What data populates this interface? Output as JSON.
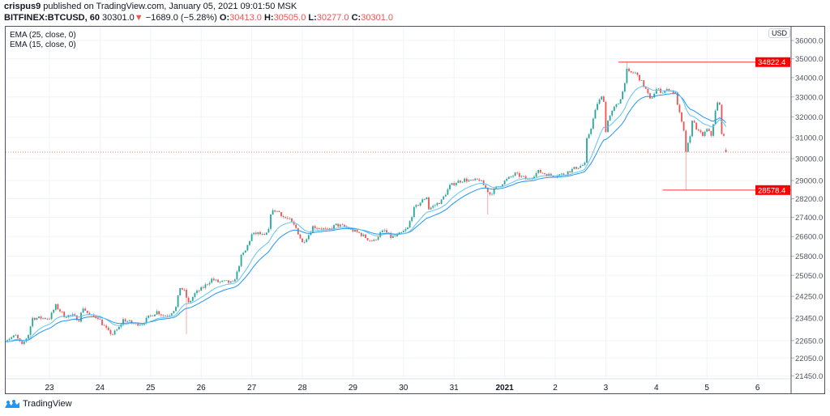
{
  "header": {
    "author": "crispus9",
    "published": " published on TradingView.com, January 05, 2021 09:01:50 MSK",
    "symbol": "BITFINEX:BTCUSD, 60",
    "last": "30301.0",
    "change": "−1689.0 (−5.28%)",
    "o_label": "O:",
    "o": "30413.0",
    "h_label": "H:",
    "h": "30505.0",
    "l_label": "L:",
    "l": "30277.0",
    "c_label": "C:",
    "c": "30301.0"
  },
  "legend": [
    "EMA (25, close, 0)",
    "EMA (15, close, 0)"
  ],
  "currency": "USD",
  "footer": {
    "brand": "TradingView"
  },
  "colors": {
    "up": "#26a69a",
    "down": "#ef5350",
    "ema25": "#2196f3",
    "ema15": "#64c4f4",
    "marker": "#ff0000",
    "grid": "#f0f3fa"
  },
  "chart_data": {
    "type": "candlestick",
    "title": "BITFINEX:BTCUSD, 60",
    "interval_hours": 1,
    "start": "Dec 22 2020 03:00",
    "y_scale": "log",
    "ylim": [
      21300,
      36300
    ],
    "y_ticks": [
      "36000.0",
      "35000.0",
      "34000.0",
      "33000.0",
      "32000.0",
      "31000.0",
      "30000.0",
      "29000.0",
      "28200.0",
      "27400.0",
      "26600.0",
      "25800.0",
      "25050.0",
      "24250.0",
      "23450.0",
      "22650.0",
      "22050.0",
      "21450.0"
    ],
    "x_ticks": [
      {
        "label": "23",
        "hour": 24
      },
      {
        "label": "24",
        "hour": 48
      },
      {
        "label": "25",
        "hour": 72
      },
      {
        "label": "26",
        "hour": 96
      },
      {
        "label": "27",
        "hour": 120
      },
      {
        "label": "28",
        "hour": 144
      },
      {
        "label": "29",
        "hour": 168
      },
      {
        "label": "30",
        "hour": 192
      },
      {
        "label": "31",
        "hour": 216
      },
      {
        "label": "2021",
        "hour": 240
      },
      {
        "label": "2",
        "hour": 264
      },
      {
        "label": "3",
        "hour": 288
      },
      {
        "label": "4",
        "hour": 312
      },
      {
        "label": "5",
        "hour": 336
      },
      {
        "label": "6",
        "hour": 360
      }
    ],
    "close_path": [
      [
        3,
        22675
      ],
      [
        8,
        22818
      ],
      [
        11,
        22476
      ],
      [
        14,
        22873
      ],
      [
        16,
        23452
      ],
      [
        20,
        23452
      ],
      [
        24,
        23452
      ],
      [
        27,
        23896
      ],
      [
        31,
        23540
      ],
      [
        35,
        23540
      ],
      [
        38,
        23395
      ],
      [
        40,
        23836
      ],
      [
        43,
        23540
      ],
      [
        47,
        23481
      ],
      [
        49,
        23248
      ],
      [
        52,
        22958
      ],
      [
        54,
        22873
      ],
      [
        57,
        23103
      ],
      [
        59,
        23395
      ],
      [
        64,
        23248
      ],
      [
        68,
        23248
      ],
      [
        71,
        23481
      ],
      [
        75,
        23688
      ],
      [
        78,
        23540
      ],
      [
        81,
        23599
      ],
      [
        84,
        23836
      ],
      [
        86,
        24593
      ],
      [
        88,
        24439
      ],
      [
        90,
        23986
      ],
      [
        93,
        24348
      ],
      [
        97,
        24593
      ],
      [
        101,
        24902
      ],
      [
        104,
        24797
      ],
      [
        108,
        24797
      ],
      [
        111,
        24747
      ],
      [
        113,
        25153
      ],
      [
        115,
        25789
      ],
      [
        117,
        26016
      ],
      [
        120,
        26674
      ],
      [
        123,
        26735
      ],
      [
        126,
        26607
      ],
      [
        128,
        26842
      ],
      [
        129,
        27590
      ],
      [
        131,
        27694
      ],
      [
        133,
        27625
      ],
      [
        135,
        27417
      ],
      [
        138,
        27282
      ],
      [
        141,
        26943
      ],
      [
        144,
        26343
      ],
      [
        147,
        26674
      ],
      [
        149,
        27010
      ],
      [
        153,
        26943
      ],
      [
        156,
        26842
      ],
      [
        160,
        27078
      ],
      [
        164,
        27010
      ],
      [
        168,
        26842
      ],
      [
        171,
        26735
      ],
      [
        176,
        26448
      ],
      [
        178,
        26422
      ],
      [
        181,
        26735
      ],
      [
        183,
        26842
      ],
      [
        186,
        26574
      ],
      [
        188,
        26607
      ],
      [
        191,
        26735
      ],
      [
        194,
        26943
      ],
      [
        197,
        27763
      ],
      [
        200,
        28041
      ],
      [
        203,
        28288
      ],
      [
        204,
        27763
      ],
      [
        206,
        27866
      ],
      [
        210,
        28110
      ],
      [
        214,
        28752
      ],
      [
        217,
        28932
      ],
      [
        221,
        29040
      ],
      [
        224,
        28968
      ],
      [
        228,
        29040
      ],
      [
        231,
        28680
      ],
      [
        233,
        28394
      ],
      [
        236,
        28680
      ],
      [
        241,
        29040
      ],
      [
        245,
        29296
      ],
      [
        251,
        29040
      ],
      [
        256,
        29406
      ],
      [
        262,
        29222
      ],
      [
        268,
        29296
      ],
      [
        274,
        29590
      ],
      [
        278,
        29739
      ],
      [
        279,
        30877
      ],
      [
        281,
        31484
      ],
      [
        284,
        32681
      ],
      [
        286,
        32969
      ],
      [
        287,
        32846
      ],
      [
        288,
        31253
      ],
      [
        289,
        31875
      ],
      [
        292,
        32436
      ],
      [
        294,
        32681
      ],
      [
        296,
        33260
      ],
      [
        298,
        34376
      ],
      [
        299,
        34246
      ],
      [
        302,
        34246
      ],
      [
        304,
        33946
      ],
      [
        307,
        33385
      ],
      [
        309,
        32846
      ],
      [
        312,
        33385
      ],
      [
        315,
        33260
      ],
      [
        318,
        33385
      ],
      [
        321,
        33177
      ],
      [
        323,
        32145
      ],
      [
        325,
        31253
      ],
      [
        326,
        30339
      ],
      [
        328,
        30987
      ],
      [
        329,
        31875
      ],
      [
        332,
        31253
      ],
      [
        334,
        31100
      ],
      [
        336,
        31368
      ],
      [
        338,
        31100
      ],
      [
        340,
        32269
      ],
      [
        341,
        32681
      ],
      [
        342,
        32558
      ],
      [
        343,
        31253
      ],
      [
        344,
        30987
      ],
      [
        345,
        30301
      ]
    ],
    "last_candle": {
      "open": 30413.0,
      "high": 30505.0,
      "low": 30277.0,
      "close": 30301.0
    },
    "notable_wicks": [
      {
        "hour": 298,
        "high": 34822.4
      },
      {
        "hour": 326,
        "low": 28578.4
      },
      {
        "hour": 89,
        "low": 22873
      },
      {
        "hour": 232,
        "low": 27520
      }
    ],
    "indicators": [
      {
        "name": "EMA (25, close, 0)",
        "period": 25
      },
      {
        "name": "EMA (15, close, 0)",
        "period": 15
      }
    ],
    "horizontal_lines": [
      {
        "price": 34822.4,
        "label": "34822.4",
        "from_hour": 294
      },
      {
        "price": 28578.4,
        "label": "28578.4",
        "from_hour": 315
      }
    ],
    "last_price_line": 30301.0
  }
}
